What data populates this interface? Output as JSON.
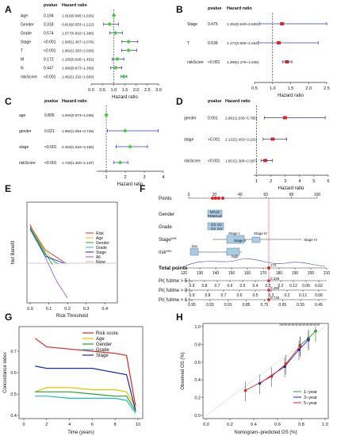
{
  "figure": {
    "panels": [
      "A",
      "B",
      "C",
      "D",
      "E",
      "F",
      "G",
      "H"
    ]
  },
  "chart_data": [
    {
      "id": "A",
      "type": "forest",
      "headers": {
        "pvalue": "pvalue",
        "hr": "Hazard ratio"
      },
      "rows": [
        {
          "label": "Age",
          "p": "0.194",
          "hr_text": "1.010(0.995~1.025)",
          "hr": 1.01,
          "lo": 0.995,
          "hi": 1.025
        },
        {
          "label": "Gender",
          "p": "0.318",
          "hr_text": "0.819(0.553~1.212)",
          "hr": 0.819,
          "lo": 0.553,
          "hi": 1.212
        },
        {
          "label": "Grade",
          "p": "0.574",
          "hr_text": "1.077(0.832~1.395)",
          "hr": 1.077,
          "lo": 0.832,
          "hi": 1.395
        },
        {
          "label": "Stage",
          "p": "<0.001",
          "hr_text": "1.665(1.367~2.076)",
          "hr": 1.665,
          "lo": 1.367,
          "hi": 2.076
        },
        {
          "label": "T",
          "p": "<0.001",
          "hr_text": "1.662(1.363~2.026)",
          "hr": 1.662,
          "lo": 1.363,
          "hi": 2.026
        },
        {
          "label": "M",
          "p": "0.172",
          "hr_text": "1.165(0.936~1.452)",
          "hr": 1.165,
          "lo": 0.936,
          "hi": 1.452
        },
        {
          "label": "N",
          "p": "0.447",
          "hr_text": "1.090(0.873~1.359)",
          "hr": 1.09,
          "lo": 0.873,
          "hi": 1.359
        },
        {
          "label": "riskScore",
          "p": "<0.001",
          "hr_text": "1.452(1.332~1.583)",
          "hr": 1.452,
          "lo": 1.332,
          "hi": 1.583
        }
      ],
      "xlabel": "Hazard ratio",
      "ticks": [
        "0.0",
        "0.5",
        "1.0",
        "1.5",
        "2.0",
        "2.5",
        "3.0"
      ],
      "xlim": [
        0,
        3
      ]
    },
    {
      "id": "B",
      "type": "forest",
      "headers": {
        "pvalue": "pvalue",
        "hr": "Hazard ratio"
      },
      "rows": [
        {
          "label": "Stage",
          "p": "0.475",
          "hr_text": "1.262(0.640~2.608)",
          "hr": 1.262,
          "lo": 0.64,
          "hi": 2.608
        },
        {
          "label": "T",
          "p": "0.639",
          "hr_text": "1.171(0.606~2.264)",
          "hr": 1.171,
          "lo": 0.606,
          "hi": 2.264
        },
        {
          "label": "riskScore",
          "p": "<0.001",
          "hr_text": "1.399(1.276~1.535)",
          "hr": 1.399,
          "lo": 1.276,
          "hi": 1.535
        }
      ],
      "xlabel": "Hazard ratio",
      "ticks": [
        "0.5",
        "1.0",
        "1.5",
        "2.0",
        "2.5"
      ],
      "xlim": [
        0.5,
        2.5
      ]
    },
    {
      "id": "C",
      "type": "forest",
      "headers": {
        "pvalue": "pvalue",
        "hr": "Hazard ratio"
      },
      "rows": [
        {
          "label": "age",
          "p": "0.805",
          "hr_text": "1.004(0.973~1.036)",
          "hr": 1.004,
          "lo": 0.973,
          "hi": 1.036
        },
        {
          "label": "gender",
          "p": "0.021",
          "hr_text": "1.992(1.064~3.729)",
          "hr": 1.992,
          "lo": 1.064,
          "hi": 3.729
        },
        {
          "label": "stage",
          "p": "<0.001",
          "hr_text": "2.253(1.515~3.165)",
          "hr": 2.253,
          "lo": 1.515,
          "hi": 3.165
        },
        {
          "label": "riskScore",
          "p": "<0.001",
          "hr_text": "1.730(1.400~2.137)",
          "hr": 1.73,
          "lo": 1.4,
          "hi": 2.137
        }
      ],
      "xlabel": "Hazard ratio",
      "ticks": [
        "1",
        "2",
        "3",
        "4"
      ],
      "xlim": [
        0.5,
        4
      ]
    },
    {
      "id": "D",
      "type": "forest",
      "headers": {
        "pvalue": "pvalue",
        "hr": "Hazard ratio"
      },
      "rows": [
        {
          "label": "gender",
          "p": "0.001",
          "hr_text": "2.981(1.536~5.785)",
          "hr": 2.981,
          "lo": 1.536,
          "hi": 5.785
        },
        {
          "label": "stage",
          "p": "<0.001",
          "hr_text": "2.122(1.453~3.101)",
          "hr": 2.122,
          "lo": 1.453,
          "hi": 3.101
        },
        {
          "label": "riskScore",
          "p": "<0.001",
          "hr_text": "1.601(1.306~2.097)",
          "hr": 1.601,
          "lo": 1.306,
          "hi": 2.097
        }
      ],
      "xlabel": "Hazard ratio",
      "ticks": [
        "1",
        "2",
        "3",
        "4",
        "5",
        "6"
      ],
      "xlim": [
        0.8,
        6
      ]
    },
    {
      "id": "E",
      "type": "line",
      "xlabel": "Risk Threshold",
      "ylabel": "Net Benefit",
      "xticks": [
        "0.0",
        "0.1",
        "0.2",
        "0.3",
        "0.4"
      ],
      "legend": [
        "Risk",
        "Age",
        "Gender",
        "Grade",
        "Stage",
        "All",
        "None"
      ]
    },
    {
      "id": "F",
      "type": "nomogram",
      "rows": [
        "Points",
        "Gender",
        "Grade",
        "Stage***",
        "risk***",
        "Total points",
        "Pr( futime > 5 )",
        "Pr( futime > 3 )",
        "Pr( futime > 1 )"
      ],
      "points_ticks": [
        "0",
        "20",
        "40",
        "60",
        "80",
        "100"
      ],
      "total_ticks": [
        "120",
        "130",
        "140",
        "150",
        "160",
        "170",
        "180",
        "190",
        "200",
        "210"
      ],
      "pr5_ticks": [
        "0.9",
        "0.8",
        "0.7",
        "0.6",
        "0.5",
        "0.4",
        "0.3",
        "0.2",
        "0.12",
        "0.06",
        "0.02"
      ],
      "pr3_ticks": [
        "0.9",
        "0.8",
        "0.7",
        "0.6",
        "0.5",
        "0.3",
        "0.2",
        "0.12",
        "0.06"
      ],
      "pr1_ticks": [
        "0.95",
        "0.93",
        "0.91",
        "0.85",
        "0.75",
        "0.65",
        "0.55",
        "0.45"
      ],
      "annot": {
        "total": "172",
        "pr5": "0.329",
        "pr3": "0.469",
        "pr1": "0.749"
      },
      "labels": {
        "male": "MALE",
        "female": "FEMALE",
        "g1": "G1",
        "g2": "G2",
        "g3": "G3",
        "g4": "G4",
        "stage_i": "Stage I",
        "stage_ii": "Stage II",
        "stage_iii": "Stage III",
        "stage_iv": "Stage IV",
        "low": "low",
        "high": "high"
      }
    },
    {
      "id": "G",
      "type": "line",
      "xlabel": "Time (years)",
      "ylabel": "Concordance index",
      "xticks": [
        "0",
        "2",
        "4",
        "6",
        "8",
        "10"
      ],
      "yticks": [
        "0.4",
        "0.5",
        "0.6",
        "0.7"
      ],
      "series": [
        {
          "name": "Risk score",
          "color": "#d62728",
          "values": [
            [
              1,
              0.76
            ],
            [
              2,
              0.72
            ],
            [
              4,
              0.71
            ],
            [
              6,
              0.7
            ],
            [
              8,
              0.69
            ],
            [
              9,
              0.68
            ],
            [
              9.8,
              0.44
            ]
          ]
        },
        {
          "name": "Age",
          "color": "#e6c200",
          "values": [
            [
              1,
              0.51
            ],
            [
              2,
              0.53
            ],
            [
              4,
              0.53
            ],
            [
              6,
              0.52
            ],
            [
              8,
              0.52
            ],
            [
              9,
              0.51
            ],
            [
              9.8,
              0.44
            ]
          ]
        },
        {
          "name": "Gender",
          "color": "#2ca02c",
          "values": [
            [
              1,
              0.51
            ],
            [
              2,
              0.51
            ],
            [
              4,
              0.51
            ],
            [
              6,
              0.5
            ],
            [
              8,
              0.49
            ],
            [
              9,
              0.49
            ],
            [
              9.8,
              0.42
            ]
          ]
        },
        {
          "name": "Grade",
          "color": "#17becf",
          "values": [
            [
              1,
              0.49
            ],
            [
              2,
              0.49
            ],
            [
              4,
              0.48
            ],
            [
              6,
              0.48
            ],
            [
              8,
              0.48
            ],
            [
              9,
              0.47
            ],
            [
              9.8,
              0.41
            ]
          ]
        },
        {
          "name": "Stage",
          "color": "#1f2aa0",
          "values": [
            [
              1,
              0.63
            ],
            [
              2,
              0.62
            ],
            [
              4,
              0.62
            ],
            [
              6,
              0.62
            ],
            [
              8,
              0.6
            ],
            [
              9,
              0.59
            ],
            [
              9.8,
              0.42
            ]
          ]
        }
      ]
    },
    {
      "id": "H",
      "type": "calibration",
      "xlabel": "Nomogram−predicted OS (%)",
      "ylabel": "Observed OS (%)",
      "ticks": [
        "0.0",
        "0.2",
        "0.4",
        "0.6",
        "0.8",
        "1.0"
      ],
      "series": [
        {
          "name": "1−year",
          "color": "#2ca02c",
          "values": [
            [
              0.79,
              0.79
            ],
            [
              0.86,
              0.87
            ],
            [
              0.92,
              0.95
            ]
          ]
        },
        {
          "name": "3−year",
          "color": "#1f2aa0",
          "values": [
            [
              0.45,
              0.36
            ],
            [
              0.66,
              0.55
            ],
            [
              0.78,
              0.74
            ],
            [
              0.86,
              0.85
            ]
          ]
        },
        {
          "name": "5−year",
          "color": "#d62728",
          "values": [
            [
              0.33,
              0.28
            ],
            [
              0.55,
              0.44
            ],
            [
              0.67,
              0.58
            ],
            [
              0.79,
              0.78
            ]
          ]
        }
      ]
    }
  ]
}
